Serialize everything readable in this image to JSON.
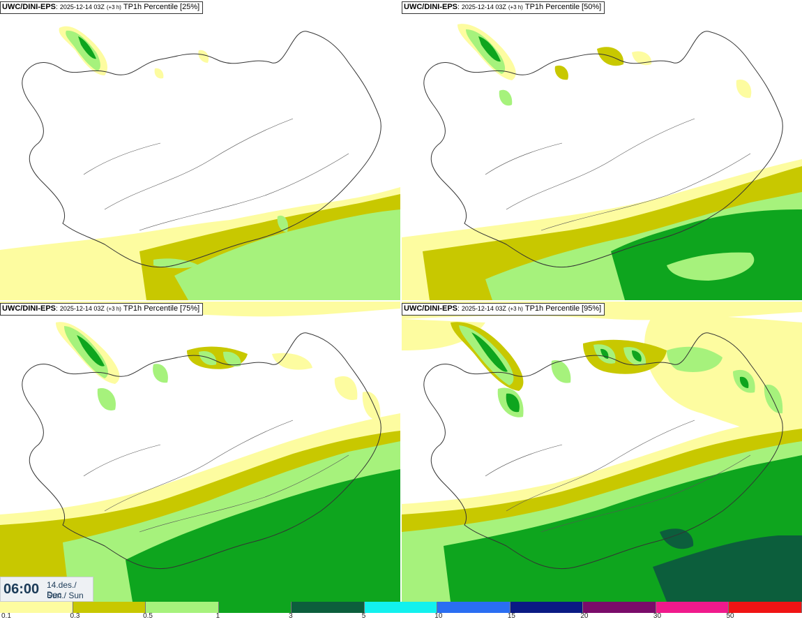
{
  "panels": [
    {
      "id": "p1",
      "source": "UWC/DINI-EPS",
      "run": "2025-12-14 03Z",
      "lead": "(+3 h)",
      "param": "TP1h Percentile",
      "percentile": "[25%]"
    },
    {
      "id": "p2",
      "source": "UWC/DINI-EPS",
      "run": "2025-12-14 03Z",
      "lead": "(+3 h)",
      "param": "TP1h Percentile",
      "percentile": "[50%]"
    },
    {
      "id": "p3",
      "source": "UWC/DINI-EPS",
      "run": "2025-12-14 03Z",
      "lead": "(+3 h)",
      "param": "TP1h Percentile",
      "percentile": "[75%]"
    },
    {
      "id": "p4",
      "source": "UWC/DINI-EPS",
      "run": "2025-12-14 03Z",
      "lead": "(+3 h)",
      "param": "TP1h Percentile",
      "percentile": "[95%]"
    }
  ],
  "valid_time": {
    "clock": "06:00",
    "date_line": "14.des./ Dec",
    "day_line": "Sun./ Sun"
  },
  "legend": {
    "colors": [
      "#fdfca0",
      "#c8c800",
      "#a6f27c",
      "#0ea51e",
      "#0c5e3c",
      "#12f1ee",
      "#2a6ef2",
      "#0a1a84",
      "#7a0b6a",
      "#f01a8c",
      "#f01414"
    ],
    "ticks": [
      "0.1",
      "0.3",
      "0.5",
      "1",
      "3",
      "5",
      "10",
      "15",
      "20",
      "30",
      "50"
    ]
  },
  "colors": {
    "land_outline": "#333333",
    "roads": "#555555"
  }
}
